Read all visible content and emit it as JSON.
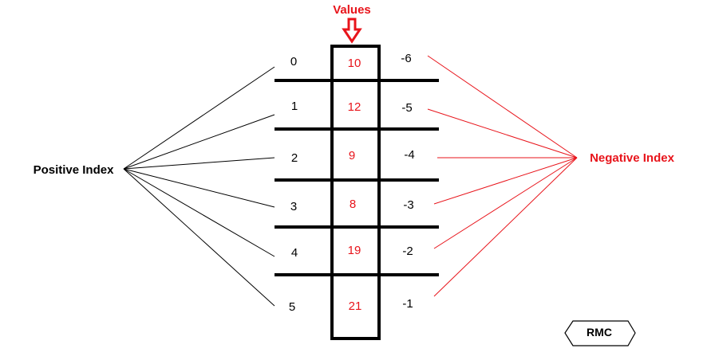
{
  "colors": {
    "accent": "#e8141b",
    "ink": "#000000"
  },
  "labels": {
    "values_heading": "Values",
    "positive_index": "Positive Index",
    "negative_index": "Negative Index",
    "logo": "RMC"
  },
  "cells": [
    {
      "value": "10",
      "pos": "0",
      "neg": "-6"
    },
    {
      "value": "12",
      "pos": "1",
      "neg": "-5"
    },
    {
      "value": "9",
      "pos": "2",
      "neg": "-4"
    },
    {
      "value": "8",
      "pos": "3",
      "neg": "-3"
    },
    {
      "value": "19",
      "pos": "4",
      "neg": "-2"
    },
    {
      "value": "21",
      "pos": "5",
      "neg": "-1"
    }
  ],
  "icons": {
    "values_pointer": "down-arrow-icon",
    "logo_shape": "hexagon-icon"
  }
}
